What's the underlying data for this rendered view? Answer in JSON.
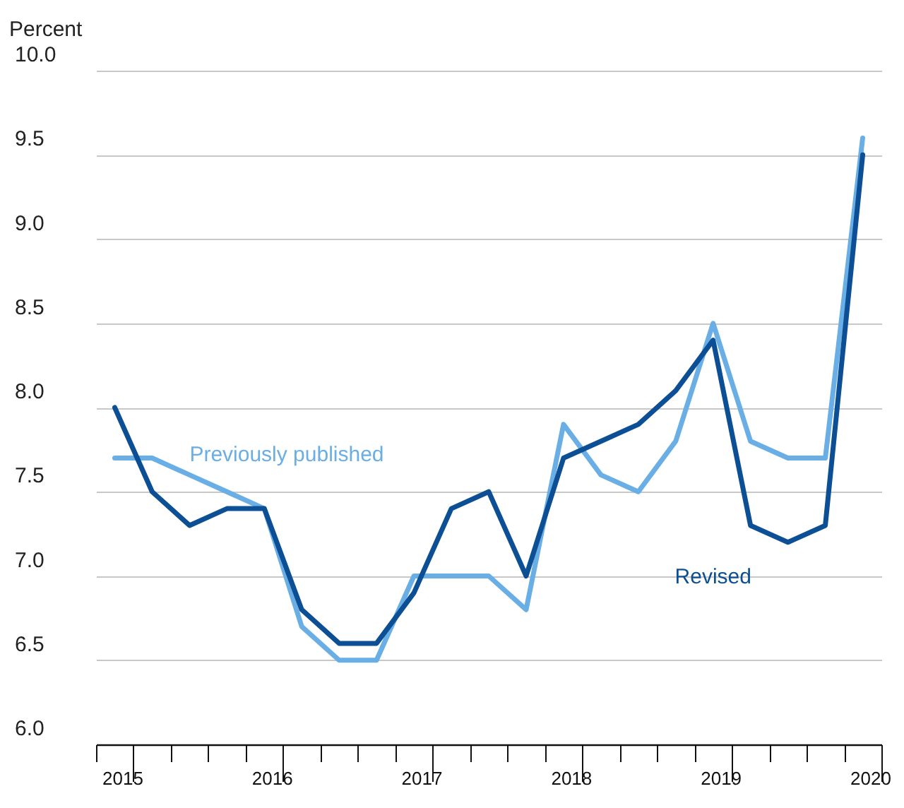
{
  "chart_data": {
    "type": "line",
    "ylabel": "Percent",
    "categories": [
      "2015",
      null,
      null,
      null,
      "2016",
      null,
      null,
      null,
      "2017",
      null,
      null,
      null,
      "2018",
      null,
      null,
      null,
      "2019",
      null,
      null,
      null,
      "2020"
    ],
    "series": [
      {
        "name": "Previously published",
        "color": "#6aaee6",
        "values": [
          7.7,
          7.7,
          7.6,
          7.5,
          7.4,
          6.7,
          6.5,
          6.5,
          7.0,
          7.0,
          7.0,
          6.8,
          7.9,
          7.6,
          7.5,
          7.8,
          8.5,
          7.8,
          7.7,
          7.7,
          9.6
        ]
      },
      {
        "name": "Revised",
        "color": "#0d4f94",
        "values": [
          8.0,
          7.5,
          7.3,
          7.4,
          7.4,
          6.8,
          6.6,
          6.6,
          6.9,
          7.4,
          7.5,
          7.0,
          7.7,
          7.8,
          7.9,
          8.1,
          8.4,
          7.3,
          7.2,
          7.3,
          9.5
        ]
      }
    ],
    "ylim": [
      6.0,
      10.0
    ],
    "yticks": [
      {
        "value": 6,
        "label": "6.0"
      },
      6.5,
      {
        "value": 7,
        "label": "7.0"
      },
      7.5,
      {
        "value": 8,
        "label": "8.0"
      },
      8.5,
      {
        "value": 9,
        "label": "9.0"
      },
      9.5,
      {
        "value": 10,
        "label": "10.0"
      }
    ],
    "grid": "y",
    "line_style": "solid"
  }
}
